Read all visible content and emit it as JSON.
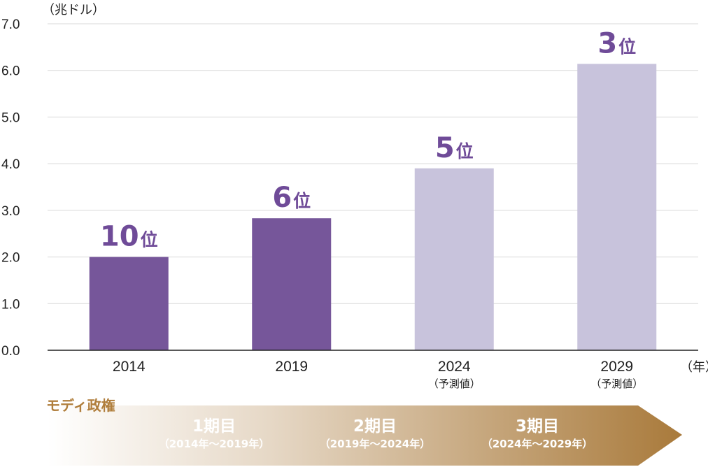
{
  "chart_data": {
    "type": "bar",
    "title": "",
    "ylabel": "（兆ドル）",
    "xlabel": "（年）",
    "ylim": [
      0,
      7.0
    ],
    "yticks": [
      "0.0",
      "1.0",
      "2.0",
      "3.0",
      "4.0",
      "5.0",
      "6.0",
      "7.0"
    ],
    "grid": true,
    "categories": [
      "2014",
      "2019",
      "2024",
      "2029"
    ],
    "category_notes": [
      "",
      "",
      "（予測値）",
      "（予測値）"
    ],
    "values": [
      2.0,
      2.83,
      3.9,
      6.14
    ],
    "rank_labels": [
      "10",
      "6",
      "5",
      "3"
    ],
    "rank_suffix": "位",
    "bar_colors": [
      "#76569a",
      "#76569a",
      "#c8c3dc",
      "#c8c3dc"
    ]
  },
  "timeline": {
    "label": "モディ政権",
    "terms": [
      {
        "name": "1期目",
        "range": "（2014年〜2019年）"
      },
      {
        "name": "2期目",
        "range": "（2019年〜2024年）"
      },
      {
        "name": "3期目",
        "range": "（2024年〜2029年）"
      }
    ],
    "colors": {
      "start": "#ffffff",
      "end": "#a97a3b"
    }
  }
}
